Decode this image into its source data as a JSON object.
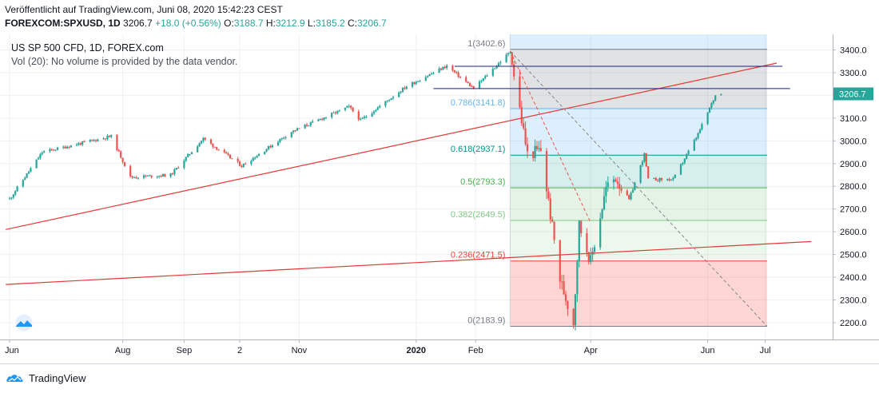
{
  "header": {
    "published": "Veröffentlicht auf TradingView.com, Juni 08, 2020 15:42:23 CEST",
    "symbol": "FOREXCOM:SPXUSD, 1D",
    "last": "3206.7",
    "change": "+18.0 (+0.56%)",
    "o_label": "O:",
    "o_value": "3188.7",
    "h_label": "H:",
    "h_value": "3212.9",
    "l_label": "L:",
    "l_value": "3185.2",
    "c_label": "C:",
    "c_value": "3206.7"
  },
  "legend": {
    "instrument": "US SP 500 CFD, 1D, FOREX.com",
    "volume_note": "Vol (20): No volume is provided by the data vendor."
  },
  "brand": {
    "name": "TradingView",
    "logo_icon": "tradingview-cloud-icon"
  },
  "colors": {
    "up": "#26a69a",
    "down": "#ef5350",
    "trendline": "#e53935",
    "hline": "#1a237e",
    "grid": "#eef0f3"
  },
  "chart_data": {
    "type": "candlestick",
    "title": "US SP 500 CFD, 1D, FOREX.com",
    "ylim": [
      2130,
      3470
    ],
    "y_ticks": [
      2200,
      2300,
      2400,
      2500,
      2600,
      2700,
      2800,
      2900,
      3000,
      3100,
      3200,
      3300,
      3400
    ],
    "x_ticks": [
      "Jun",
      "Aug",
      "Sep",
      "2",
      "Nov",
      "2020",
      "Feb",
      "Apr",
      "Jun",
      "Jul"
    ],
    "x_range": [
      "2019-06-01",
      "2020-07-25"
    ],
    "grid": true,
    "current_price": "3206.7",
    "price_path": [
      [
        "2019-06-03",
        2744
      ],
      [
        "2019-06-20",
        2950
      ],
      [
        "2019-07-26",
        3020
      ],
      [
        "2019-08-05",
        2840
      ],
      [
        "2019-08-26",
        2850
      ],
      [
        "2019-09-12",
        3010
      ],
      [
        "2019-10-02",
        2890
      ],
      [
        "2019-10-28",
        3040
      ],
      [
        "2019-11-27",
        3150
      ],
      [
        "2019-12-03",
        3090
      ],
      [
        "2019-12-27",
        3240
      ],
      [
        "2020-01-17",
        3330
      ],
      [
        "2020-01-31",
        3230
      ],
      [
        "2020-02-19",
        3392
      ],
      [
        "2020-02-28",
        2940
      ],
      [
        "2020-03-06",
        2960
      ],
      [
        "2020-03-16",
        2390
      ],
      [
        "2020-03-23",
        2200
      ],
      [
        "2020-03-26",
        2630
      ],
      [
        "2020-04-01",
        2470
      ],
      [
        "2020-04-09",
        2790
      ],
      [
        "2020-04-14",
        2840
      ],
      [
        "2020-04-21",
        2740
      ],
      [
        "2020-04-29",
        2940
      ],
      [
        "2020-05-01",
        2830
      ],
      [
        "2020-05-14",
        2830
      ],
      [
        "2020-05-27",
        3030
      ],
      [
        "2020-06-05",
        3200
      ],
      [
        "2020-06-08",
        3206.7
      ]
    ],
    "fibonacci": {
      "start_date": "2020-02-19",
      "end_date": "2020-07-02",
      "levels": [
        {
          "ratio": "1",
          "price": "3402.6",
          "label": "1(3402.6)",
          "color": "#787b86",
          "fill": "rgba(120,123,134,0.22)"
        },
        {
          "ratio": "0.786",
          "price": "3141.8",
          "label": "0.786(3141.8)",
          "color": "#64b5f6",
          "fill": "rgba(100,181,246,0.22)"
        },
        {
          "ratio": "0.618",
          "price": "2937.1",
          "label": "0.618(2937.1)",
          "color": "#009688",
          "fill": "rgba(0,150,136,0.16)"
        },
        {
          "ratio": "0.5",
          "price": "2793.3",
          "label": "0.5(2793.3)",
          "color": "#4caf50",
          "fill": "rgba(76,175,80,0.15)"
        },
        {
          "ratio": "0.382",
          "price": "2649.5",
          "label": "0.382(2649.5)",
          "color": "#81c784",
          "fill": "rgba(129,199,132,0.15)"
        },
        {
          "ratio": "0.236",
          "price": "2471.5",
          "label": "0.236(2471.5)",
          "color": "#f44336",
          "fill": "rgba(244,67,54,0.22)"
        },
        {
          "ratio": "0",
          "price": "2183.9",
          "label": "0(2183.9)",
          "color": "#787b86",
          "fill": ""
        }
      ]
    },
    "horizontal_lines": [
      {
        "price": 3328,
        "from": "2020-01-21",
        "to": "2020-07-10"
      },
      {
        "price": 3230,
        "from": "2020-01-10",
        "to": "2020-07-14"
      }
    ],
    "trend_lines": [
      {
        "from": [
          "2019-06-01",
          2610
        ],
        "to": [
          "2020-07-07",
          3342
        ]
      },
      {
        "from": [
          "2019-06-01",
          2368
        ],
        "to": [
          "2020-07-25",
          2557
        ]
      }
    ],
    "fib_trend_dashed": [
      {
        "from": [
          "2020-02-19",
          3395
        ],
        "to": [
          "2020-07-02",
          2183.9
        ],
        "color": "#888888"
      },
      {
        "from": [
          "2020-02-19",
          3395
        ],
        "to": [
          "2020-04-01",
          2640
        ],
        "color": "#ef5350"
      }
    ]
  }
}
